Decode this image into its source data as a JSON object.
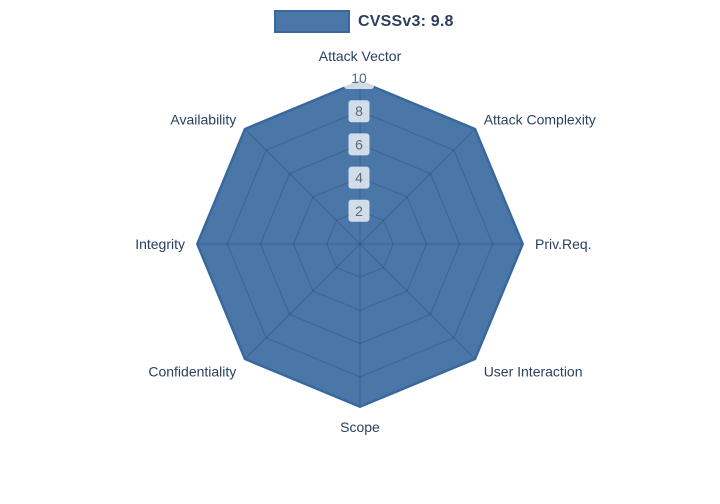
{
  "legend": {
    "label": "CVSSv3: 9.8"
  },
  "chart_data": {
    "type": "radar",
    "title": "",
    "categories": [
      "Attack Vector",
      "Attack Complexity",
      "Priv.Req.",
      "User Interaction",
      "Scope",
      "Confidentiality",
      "Integrity",
      "Availability"
    ],
    "series": [
      {
        "name": "CVSSv3: 9.8",
        "values": [
          9.8,
          9.8,
          9.8,
          9.8,
          9.8,
          9.8,
          9.8,
          9.8
        ]
      }
    ],
    "radial_ticks": [
      2,
      4,
      6,
      8,
      10
    ],
    "radial_range": [
      0,
      10
    ],
    "start_angle_deg": 90,
    "direction": "clockwise",
    "grid": true,
    "legend_position": "top-center",
    "colors": {
      "fill": "#4a77a8",
      "line": "#37689e",
      "grid_line": "rgba(28, 50, 82, 0.25)",
      "tick_box": "rgba(255, 255, 255, 0.75)",
      "tick_label": "#5b6b7c",
      "axis_label": "#2a3f5f"
    }
  }
}
